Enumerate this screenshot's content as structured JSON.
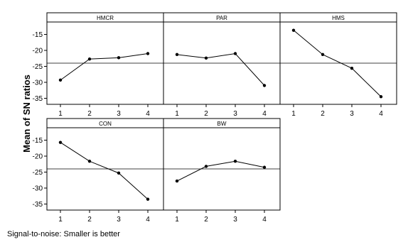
{
  "figure": {
    "ylabel": "Mean of SN ratios",
    "footer": "Signal-to-noise: Smaller is better",
    "reference_mean": -24
  },
  "chart_data": {
    "type": "line",
    "ylabel": "Mean of SN ratios",
    "ylim": [
      -36,
      -12
    ],
    "yticks": [
      -15,
      -20,
      -25,
      -30,
      -35
    ],
    "grand_mean": -24,
    "categories": [
      "1",
      "2",
      "3",
      "4"
    ],
    "panels": [
      {
        "name": "HMCR",
        "values": [
          -29.3,
          -22.7,
          -22.3,
          -21.0
        ]
      },
      {
        "name": "PAR",
        "values": [
          -21.3,
          -22.4,
          -21.0,
          -31.0
        ]
      },
      {
        "name": "HMS",
        "values": [
          -13.7,
          -21.3,
          -25.6,
          -34.5
        ]
      },
      {
        "name": "CON",
        "values": [
          -15.7,
          -21.6,
          -25.3,
          -33.5
        ]
      },
      {
        "name": "BW",
        "values": [
          -27.8,
          -23.2,
          -21.6,
          -23.5
        ]
      }
    ],
    "colors": {
      "line": "#000000",
      "reference": "#000000",
      "frame": "#000000"
    }
  }
}
